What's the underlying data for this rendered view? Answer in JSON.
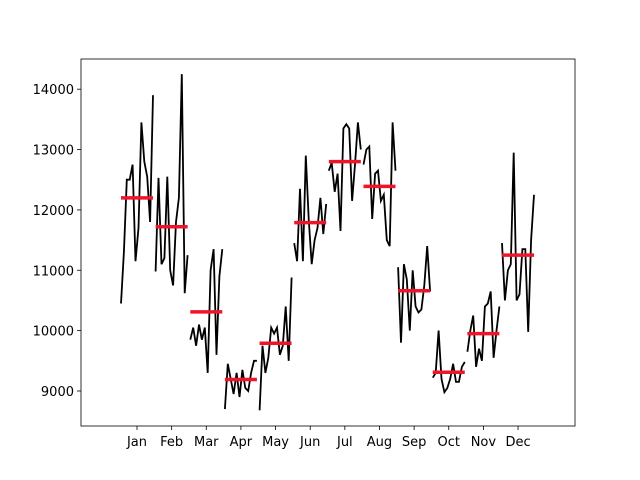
{
  "chart_data": {
    "type": "monthplot",
    "categories": [
      "Jan",
      "Feb",
      "Mar",
      "Apr",
      "May",
      "Jun",
      "Jul",
      "Aug",
      "Sep",
      "Oct",
      "Nov",
      "Dec"
    ],
    "subseries": [
      [
        10450,
        11300,
        12500,
        12500,
        12750,
        11150,
        11700,
        13450,
        12800,
        12550,
        11800,
        13900
      ],
      [
        10980,
        12530,
        11100,
        11200,
        12550,
        11000,
        10750,
        11800,
        12200,
        14250,
        10620,
        11250
      ],
      [
        9850,
        10050,
        9750,
        10100,
        9850,
        10050,
        9300,
        11000,
        11350,
        9600,
        10900,
        11350
      ],
      [
        8700,
        9450,
        9200,
        8950,
        9300,
        8900,
        9350,
        9050,
        9000,
        9300,
        9500,
        9500
      ],
      [
        8680,
        9750,
        9300,
        9550,
        10050,
        9950,
        10050,
        9600,
        9750,
        10400,
        9500,
        10880
      ],
      [
        11450,
        11150,
        12350,
        11150,
        12900,
        11850,
        11100,
        11500,
        11700,
        12200,
        11600,
        12100
      ],
      [
        12650,
        12780,
        12300,
        12600,
        11650,
        13350,
        13420,
        13350,
        12150,
        12750,
        13450,
        13000
      ],
      [
        12750,
        13000,
        13050,
        11850,
        12600,
        12650,
        12150,
        12250,
        11500,
        11400,
        13450,
        12650
      ],
      [
        11050,
        9800,
        11100,
        10850,
        10000,
        11000,
        10400,
        10300,
        10350,
        10750,
        11400,
        10650
      ],
      [
        9220,
        9300,
        10000,
        9200,
        8980,
        9050,
        9200,
        9450,
        9150,
        9150,
        9400,
        9480
      ],
      [
        9650,
        10000,
        10250,
        9400,
        9700,
        9500,
        10400,
        10450,
        10650,
        9550,
        10000,
        10400
      ],
      [
        11450,
        10500,
        11000,
        11100,
        12950,
        10500,
        10600,
        11350,
        11350,
        9980,
        11500,
        12250
      ]
    ],
    "means": [
      12200,
      11720,
      10310,
      9190,
      9790,
      11790,
      12800,
      12390,
      10660,
      9310,
      9950,
      11250
    ],
    "line_color": "#000000",
    "mean_color": "#f0142b",
    "ylim": [
      8420,
      14500
    ],
    "yticks": [
      9000,
      10000,
      11000,
      12000,
      13000,
      14000
    ]
  }
}
